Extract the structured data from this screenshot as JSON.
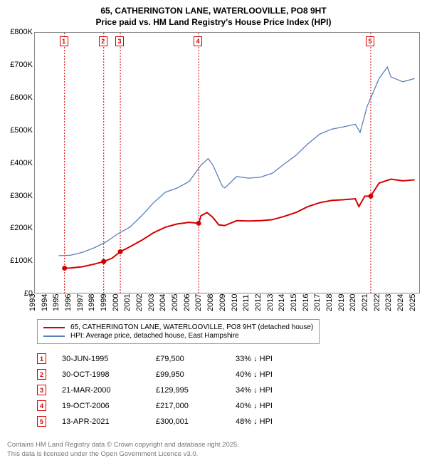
{
  "title_line1": "65, CATHERINGTON LANE, WATERLOOVILLE, PO8 9HT",
  "title_line2": "Price paid vs. HM Land Registry's House Price Index (HPI)",
  "chart": {
    "type": "line",
    "background_color": "#ffffff",
    "border_color": "#888888",
    "xlim": [
      1993,
      2025.5
    ],
    "ylim": [
      0,
      800000
    ],
    "y_ticks": [
      0,
      100000,
      200000,
      300000,
      400000,
      500000,
      600000,
      700000,
      800000
    ],
    "y_tick_labels": [
      "£0",
      "£100K",
      "£200K",
      "£300K",
      "£400K",
      "£500K",
      "£600K",
      "£700K",
      "£800K"
    ],
    "x_ticks": [
      1993,
      1994,
      1995,
      1996,
      1997,
      1998,
      1999,
      2000,
      2001,
      2002,
      2003,
      2004,
      2005,
      2006,
      2007,
      2008,
      2009,
      2010,
      2011,
      2012,
      2013,
      2014,
      2015,
      2016,
      2017,
      2018,
      2019,
      2020,
      2021,
      2022,
      2023,
      2024,
      2025
    ],
    "y_label_fontsize": 11,
    "x_label_fontsize": 11,
    "series": [
      {
        "name": "property",
        "label": "65, CATHERINGTON LANE, WATERLOOVILLE, PO8 9HT (detached house)",
        "color": "#d40000",
        "line_width": 2,
        "points": [
          [
            1995.5,
            79500
          ],
          [
            1996,
            80000
          ],
          [
            1997,
            84000
          ],
          [
            1998,
            92000
          ],
          [
            1998.8,
            99950
          ],
          [
            1999.5,
            110000
          ],
          [
            2000.2,
            129995
          ],
          [
            2001,
            145000
          ],
          [
            2002,
            165000
          ],
          [
            2003,
            188000
          ],
          [
            2004,
            205000
          ],
          [
            2005,
            215000
          ],
          [
            2006,
            220000
          ],
          [
            2006.8,
            217000
          ],
          [
            2007,
            240000
          ],
          [
            2007.5,
            250000
          ],
          [
            2008,
            235000
          ],
          [
            2008.5,
            212000
          ],
          [
            2009,
            210000
          ],
          [
            2010,
            225000
          ],
          [
            2011,
            224000
          ],
          [
            2012,
            225000
          ],
          [
            2013,
            228000
          ],
          [
            2014,
            238000
          ],
          [
            2015,
            250000
          ],
          [
            2016,
            268000
          ],
          [
            2017,
            280000
          ],
          [
            2018,
            287000
          ],
          [
            2019,
            289000
          ],
          [
            2020,
            292000
          ],
          [
            2020.3,
            268000
          ],
          [
            2020.8,
            300000
          ],
          [
            2021.3,
            300001
          ],
          [
            2022,
            340000
          ],
          [
            2023,
            352000
          ],
          [
            2024,
            347000
          ],
          [
            2025,
            350000
          ]
        ],
        "sale_markers": [
          {
            "x": 1995.5,
            "y": 79500
          },
          {
            "x": 1998.8,
            "y": 99950
          },
          {
            "x": 2000.2,
            "y": 129995
          },
          {
            "x": 2006.8,
            "y": 217000
          },
          {
            "x": 2021.3,
            "y": 300001
          }
        ]
      },
      {
        "name": "hpi",
        "label": "HPI: Average price, detached house, East Hampshire",
        "color": "#5b7fb9",
        "line_width": 1.3,
        "points": [
          [
            1995,
            118000
          ],
          [
            1996,
            119000
          ],
          [
            1997,
            128000
          ],
          [
            1998,
            142000
          ],
          [
            1999,
            160000
          ],
          [
            2000,
            185000
          ],
          [
            2001,
            205000
          ],
          [
            2002,
            240000
          ],
          [
            2003,
            280000
          ],
          [
            2004,
            312000
          ],
          [
            2005,
            325000
          ],
          [
            2006,
            345000
          ],
          [
            2007,
            395000
          ],
          [
            2007.6,
            415000
          ],
          [
            2008,
            395000
          ],
          [
            2008.8,
            330000
          ],
          [
            2009,
            325000
          ],
          [
            2010,
            360000
          ],
          [
            2011,
            355000
          ],
          [
            2012,
            358000
          ],
          [
            2013,
            370000
          ],
          [
            2014,
            398000
          ],
          [
            2015,
            425000
          ],
          [
            2016,
            460000
          ],
          [
            2017,
            490000
          ],
          [
            2018,
            505000
          ],
          [
            2019,
            512000
          ],
          [
            2020,
            520000
          ],
          [
            2020.4,
            495000
          ],
          [
            2021,
            575000
          ],
          [
            2022,
            660000
          ],
          [
            2022.7,
            695000
          ],
          [
            2023,
            665000
          ],
          [
            2024,
            650000
          ],
          [
            2025,
            660000
          ]
        ]
      }
    ],
    "vertical_markers": [
      {
        "num": "1",
        "x": 1995.5,
        "color": "#d40000"
      },
      {
        "num": "2",
        "x": 1998.8,
        "color": "#d40000"
      },
      {
        "num": "3",
        "x": 2000.2,
        "color": "#d40000"
      },
      {
        "num": "4",
        "x": 2006.8,
        "color": "#d40000"
      },
      {
        "num": "5",
        "x": 2021.3,
        "color": "#d40000"
      }
    ]
  },
  "legend": {
    "border_color": "#999999",
    "items": [
      {
        "color": "#d40000",
        "label": "65, CATHERINGTON LANE, WATERLOOVILLE, PO8 9HT (detached house)"
      },
      {
        "color": "#5b7fb9",
        "label": "HPI: Average price, detached house, East Hampshire"
      }
    ]
  },
  "sales": [
    {
      "num": "1",
      "date": "30-JUN-1995",
      "price": "£79,500",
      "pct": "33% ↓ HPI",
      "color": "#d40000"
    },
    {
      "num": "2",
      "date": "30-OCT-1998",
      "price": "£99,950",
      "pct": "40% ↓ HPI",
      "color": "#d40000"
    },
    {
      "num": "3",
      "date": "21-MAR-2000",
      "price": "£129,995",
      "pct": "34% ↓ HPI",
      "color": "#d40000"
    },
    {
      "num": "4",
      "date": "19-OCT-2006",
      "price": "£217,000",
      "pct": "40% ↓ HPI",
      "color": "#d40000"
    },
    {
      "num": "5",
      "date": "13-APR-2021",
      "price": "£300,001",
      "pct": "48% ↓ HPI",
      "color": "#d40000"
    }
  ],
  "footer_line1": "Contains HM Land Registry data © Crown copyright and database right 2025.",
  "footer_line2": "This data is licensed under the Open Government Licence v3.0."
}
